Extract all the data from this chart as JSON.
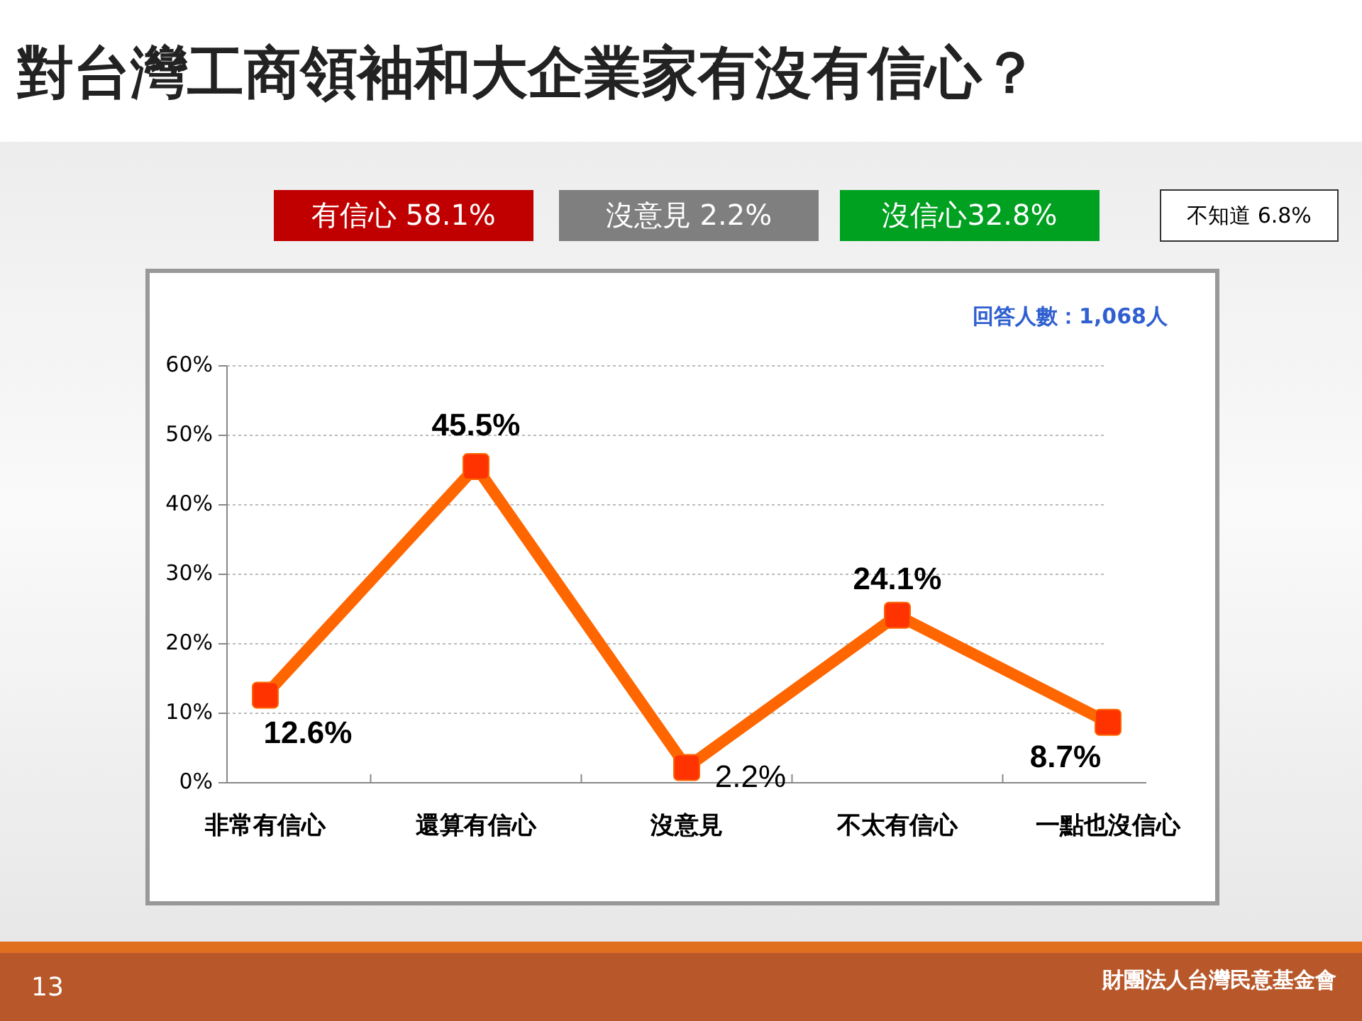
{
  "chart_data": {
    "type": "line",
    "title": "對台灣工商領袖和大企業家有沒有信心？",
    "categories": [
      "非常有信心",
      "還算有信心",
      "沒意見",
      "不太有信心",
      "一點也沒信心"
    ],
    "series": [
      {
        "color": "#ff6600",
        "values": [
          12.6,
          45.5,
          2.2,
          24.1,
          8.7
        ],
        "value_labels": [
          "12.6%",
          "45.5%",
          "2.2%",
          "24.1%",
          "8.7%"
        ]
      }
    ],
    "ylim": [
      0,
      60
    ],
    "yticks": [
      {
        "value": 0,
        "label": "0%"
      },
      {
        "value": 10,
        "label": "10%"
      },
      {
        "value": 20,
        "label": "20%"
      },
      {
        "value": 30,
        "label": "30%"
      },
      {
        "value": 40,
        "label": "40%"
      },
      {
        "value": 50,
        "label": "50%"
      },
      {
        "value": 60,
        "label": "60%"
      }
    ],
    "grid": "y",
    "marker": "square",
    "line_style": "solid",
    "annotations": [
      "有信心 58.1%",
      "沒意見 2.2%",
      "沒信心32.8%",
      "不知道 6.8%",
      "回答人數：1,068人",
      "13",
      "財團法人台灣民意基金會"
    ]
  }
}
